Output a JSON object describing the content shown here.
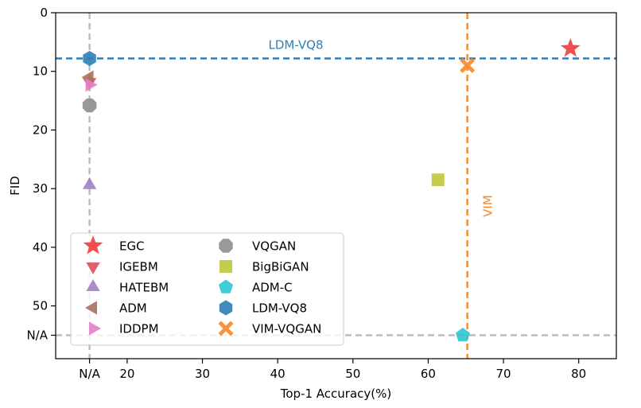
{
  "chart_data": {
    "type": "scatter",
    "xlabel": "Top-1 Accuracy(%)",
    "ylabel": "FID",
    "xlim": [
      10.5,
      85
    ],
    "ylim_inverted": [
      0,
      59
    ],
    "x_ticks": [
      {
        "value": 15,
        "label": "N/A"
      },
      {
        "value": 20,
        "label": "20"
      },
      {
        "value": 30,
        "label": "30"
      },
      {
        "value": 40,
        "label": "40"
      },
      {
        "value": 50,
        "label": "50"
      },
      {
        "value": 60,
        "label": "60"
      },
      {
        "value": 70,
        "label": "70"
      },
      {
        "value": 80,
        "label": "80"
      }
    ],
    "y_ticks": [
      {
        "value": 0,
        "label": "0"
      },
      {
        "value": 10,
        "label": "10"
      },
      {
        "value": 20,
        "label": "20"
      },
      {
        "value": 30,
        "label": "30"
      },
      {
        "value": 40,
        "label": "40"
      },
      {
        "value": 50,
        "label": "50"
      },
      {
        "value": 55,
        "label": "N/A"
      }
    ],
    "reference_lines": [
      {
        "orientation": "vertical",
        "value": 15,
        "color": "#bbbbbb",
        "label": ""
      },
      {
        "orientation": "horizontal",
        "value": 55,
        "color": "#bbbbbb",
        "label": ""
      },
      {
        "orientation": "horizontal",
        "value": 7.8,
        "color": "#2e7fb6",
        "label": "LDM-VQ8"
      },
      {
        "orientation": "vertical",
        "value": 65.2,
        "color": "#f5882a",
        "label": "VIM"
      }
    ],
    "series": [
      {
        "name": "EGC",
        "marker": "star",
        "color": "#f03c3c",
        "points": [
          [
            78.9,
            6.1
          ]
        ]
      },
      {
        "name": "IGEBM",
        "marker": "triangle-down",
        "color": "#d9545a",
        "points": [
          [
            15,
            11.8
          ]
        ]
      },
      {
        "name": "HATEBM",
        "marker": "triangle-up",
        "color": "#a27fc6",
        "points": [
          [
            15,
            29.4
          ]
        ]
      },
      {
        "name": "ADM",
        "marker": "triangle-left",
        "color": "#a5705f",
        "points": [
          [
            15,
            11.0
          ]
        ]
      },
      {
        "name": "IDDPM",
        "marker": "triangle-right",
        "color": "#e37fc9",
        "points": [
          [
            15,
            12.3
          ]
        ]
      },
      {
        "name": "VQGAN",
        "marker": "octagon",
        "color": "#8e8e8e",
        "points": [
          [
            15,
            15.8
          ]
        ]
      },
      {
        "name": "BigBiGAN",
        "marker": "square",
        "color": "#c2c63a",
        "points": [
          [
            61.3,
            28.5
          ]
        ]
      },
      {
        "name": "ADM-C",
        "marker": "pentagon",
        "color": "#2ec6d2",
        "points": [
          [
            64.6,
            55
          ]
        ]
      },
      {
        "name": "LDM-VQ8",
        "marker": "hexagon",
        "color": "#2e7fb6",
        "points": [
          [
            15,
            7.8
          ]
        ]
      },
      {
        "name": "VIM-VQGAN",
        "marker": "x-thick",
        "color": "#f5882a",
        "points": [
          [
            65.2,
            9.0
          ]
        ]
      }
    ],
    "legend": {
      "placement": "lower-left",
      "columns": 2
    },
    "grid": false
  }
}
